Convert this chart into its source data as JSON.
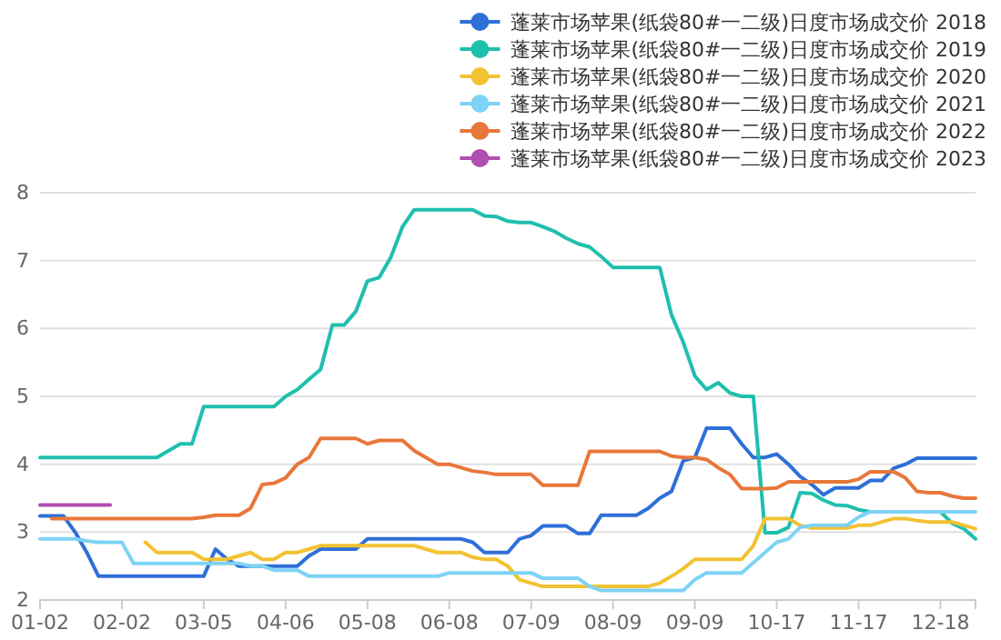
{
  "chart_data": {
    "type": "line",
    "legend": "top right",
    "grid": "y",
    "ylim": [
      2,
      8
    ],
    "yticks": [
      2,
      3,
      4,
      5,
      6,
      7,
      8
    ],
    "categories": [
      "01-02",
      null,
      null,
      null,
      null,
      null,
      null,
      "02-02",
      null,
      null,
      null,
      null,
      null,
      null,
      "03-05",
      null,
      null,
      null,
      null,
      null,
      null,
      "04-06",
      null,
      null,
      null,
      null,
      null,
      null,
      "05-08",
      null,
      null,
      null,
      null,
      null,
      null,
      "06-08",
      null,
      null,
      null,
      null,
      null,
      null,
      "07-09",
      null,
      null,
      null,
      null,
      null,
      null,
      "08-09",
      null,
      null,
      null,
      null,
      null,
      null,
      "09-09",
      null,
      null,
      null,
      null,
      null,
      null,
      "10-17",
      null,
      null,
      null,
      null,
      null,
      null,
      "11-17",
      null,
      null,
      null,
      null,
      null,
      null,
      "12-18",
      null,
      null,
      null
    ],
    "series": [
      {
        "name": "蓬莱市场苹果(纸袋80#一二级)日度市场成交价 2018",
        "color": "#2e6fd8",
        "values": [
          3.24,
          3.24,
          3.24,
          3.0,
          2.7,
          2.35,
          2.35,
          2.35,
          2.35,
          2.35,
          2.35,
          2.35,
          2.35,
          2.35,
          2.35,
          2.75,
          2.6,
          2.5,
          2.5,
          2.5,
          2.5,
          2.5,
          2.5,
          2.65,
          2.75,
          2.75,
          2.75,
          2.75,
          2.9,
          2.9,
          2.9,
          2.9,
          2.9,
          2.9,
          2.9,
          2.9,
          2.9,
          2.85,
          2.7,
          2.7,
          2.7,
          2.9,
          2.95,
          3.09,
          3.09,
          3.09,
          2.98,
          2.98,
          3.25,
          3.25,
          3.25,
          3.25,
          3.35,
          3.5,
          3.6,
          4.05,
          4.1,
          4.53,
          4.53,
          4.53,
          4.3,
          4.1,
          4.1,
          4.15,
          4.0,
          3.82,
          3.7,
          3.55,
          3.65,
          3.65,
          3.65,
          3.76,
          3.76,
          3.94,
          4.0,
          4.09,
          4.09,
          4.09,
          4.09,
          4.09,
          4.09
        ]
      },
      {
        "name": "蓬莱市场苹果(纸袋80#一二级)日度市场成交价 2019",
        "color": "#1fbfad",
        "values": [
          4.1,
          4.1,
          4.1,
          4.1,
          4.1,
          4.1,
          4.1,
          4.1,
          4.1,
          4.1,
          4.1,
          4.2,
          4.3,
          4.3,
          4.85,
          4.85,
          4.85,
          4.85,
          4.85,
          4.85,
          4.85,
          5.0,
          5.1,
          5.25,
          5.4,
          6.05,
          6.05,
          6.25,
          6.7,
          6.75,
          7.05,
          7.5,
          7.75,
          7.75,
          7.75,
          7.75,
          7.75,
          7.75,
          7.66,
          7.65,
          7.58,
          7.56,
          7.56,
          7.5,
          7.43,
          7.33,
          7.25,
          7.2,
          7.06,
          6.9,
          6.9,
          6.9,
          6.9,
          6.9,
          6.2,
          5.8,
          5.3,
          5.1,
          5.2,
          5.05,
          5.0,
          5.0,
          2.99,
          2.99,
          3.07,
          3.58,
          3.57,
          3.47,
          3.4,
          3.39,
          3.33,
          3.3,
          3.3,
          3.3,
          3.3,
          3.3,
          3.3,
          3.3,
          3.13,
          3.05,
          2.9
        ]
      },
      {
        "name": "蓬莱市场苹果(纸袋80#一二级)日度市场成交价 2020",
        "color": "#f2c232",
        "values": [
          null,
          null,
          null,
          null,
          null,
          null,
          null,
          null,
          null,
          2.85,
          2.7,
          2.7,
          2.7,
          2.7,
          2.6,
          2.6,
          2.6,
          2.65,
          2.7,
          2.6,
          2.6,
          2.7,
          2.7,
          2.75,
          2.8,
          2.8,
          2.8,
          2.8,
          2.8,
          2.8,
          2.8,
          2.8,
          2.8,
          2.75,
          2.7,
          2.7,
          2.7,
          2.63,
          2.6,
          2.6,
          2.5,
          2.3,
          2.25,
          2.2,
          2.2,
          2.2,
          2.2,
          2.2,
          2.2,
          2.2,
          2.2,
          2.2,
          2.2,
          2.25,
          2.35,
          2.46,
          2.6,
          2.6,
          2.6,
          2.6,
          2.6,
          2.8,
          3.2,
          3.2,
          3.2,
          3.1,
          3.06,
          3.06,
          3.06,
          3.06,
          3.1,
          3.1,
          3.15,
          3.2,
          3.2,
          3.17,
          3.15,
          3.15,
          3.15,
          3.1,
          3.05
        ]
      },
      {
        "name": "蓬莱市场苹果(纸袋80#一二级)日度市场成交价 2021",
        "color": "#7dd3f5",
        "values": [
          2.9,
          2.9,
          2.9,
          2.9,
          2.87,
          2.85,
          2.85,
          2.85,
          2.54,
          2.54,
          2.54,
          2.54,
          2.54,
          2.54,
          2.54,
          2.54,
          2.54,
          2.54,
          2.5,
          2.5,
          2.44,
          2.44,
          2.44,
          2.35,
          2.35,
          2.35,
          2.35,
          2.35,
          2.35,
          2.35,
          2.35,
          2.35,
          2.35,
          2.35,
          2.35,
          2.4,
          2.4,
          2.4,
          2.4,
          2.4,
          2.4,
          2.4,
          2.4,
          2.32,
          2.32,
          2.32,
          2.32,
          2.2,
          2.14,
          2.14,
          2.14,
          2.14,
          2.14,
          2.14,
          2.14,
          2.14,
          2.3,
          2.4,
          2.4,
          2.4,
          2.4,
          2.55,
          2.7,
          2.85,
          2.9,
          3.07,
          3.1,
          3.1,
          3.1,
          3.1,
          3.22,
          3.3,
          3.3,
          3.3,
          3.3,
          3.3,
          3.3,
          3.3,
          3.3,
          3.3,
          3.3
        ]
      },
      {
        "name": "蓬莱市场苹果(纸袋80#一二级)日度市场成交价 2022",
        "color": "#e8773a",
        "values": [
          null,
          3.2,
          3.2,
          3.2,
          3.2,
          3.2,
          3.2,
          3.2,
          3.2,
          3.2,
          3.2,
          3.2,
          3.2,
          3.2,
          3.22,
          3.25,
          3.25,
          3.25,
          3.35,
          3.7,
          3.72,
          3.8,
          4.0,
          4.1,
          4.38,
          4.38,
          4.38,
          4.38,
          4.3,
          4.35,
          4.35,
          4.35,
          4.2,
          4.1,
          4.0,
          4.0,
          3.95,
          3.9,
          3.88,
          3.85,
          3.85,
          3.85,
          3.85,
          3.69,
          3.69,
          3.69,
          3.69,
          4.19,
          4.19,
          4.19,
          4.19,
          4.19,
          4.19,
          4.19,
          4.12,
          4.1,
          4.1,
          4.07,
          3.95,
          3.85,
          3.64,
          3.64,
          3.64,
          3.65,
          3.74,
          3.74,
          3.74,
          3.74,
          3.74,
          3.74,
          3.78,
          3.89,
          3.89,
          3.89,
          3.8,
          3.6,
          3.58,
          3.58,
          3.53,
          3.5,
          3.5
        ]
      },
      {
        "name": "蓬莱市场苹果(纸袋80#一二级)日度市场成交价 2023",
        "color": "#b04fb0",
        "values": [
          3.4,
          3.4,
          3.4,
          3.4,
          3.4,
          3.4,
          3.4,
          null,
          null,
          null,
          null,
          null,
          null,
          null,
          null,
          null,
          null,
          null,
          null,
          null,
          null,
          null,
          null,
          null,
          null,
          null,
          null,
          null,
          null,
          null,
          null,
          null,
          null,
          null,
          null,
          null,
          null,
          null,
          null,
          null,
          null,
          null,
          null,
          null,
          null,
          null,
          null,
          null,
          null,
          null,
          null,
          null,
          null,
          null,
          null,
          null,
          null,
          null,
          null,
          null,
          null,
          null,
          null,
          null,
          null,
          null,
          null,
          null,
          null,
          null,
          null,
          null,
          null,
          null,
          null,
          null,
          null,
          null,
          null,
          null,
          null
        ]
      }
    ]
  }
}
